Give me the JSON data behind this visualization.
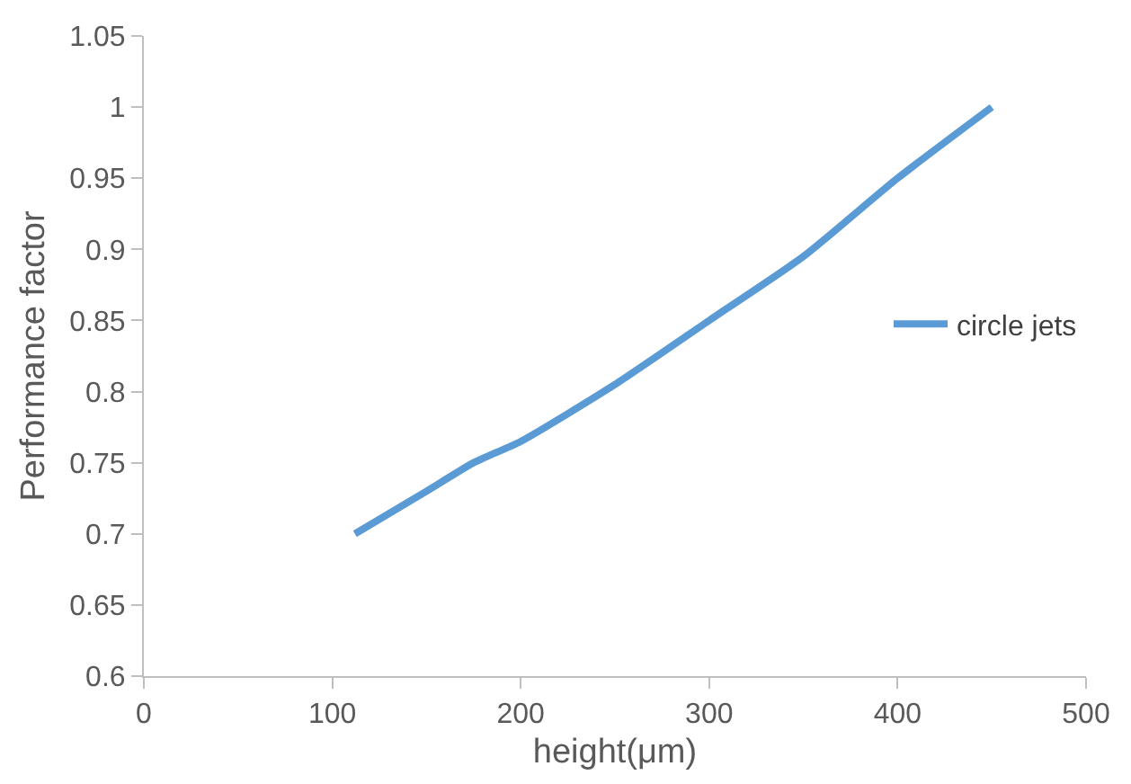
{
  "chart_data": {
    "type": "line",
    "xlabel": "height(μm)",
    "ylabel": "Performance factor",
    "x": [
      112,
      150,
      175,
      200,
      250,
      300,
      350,
      400,
      450
    ],
    "series": [
      {
        "name": "circle jets",
        "color": "#5b9bd5",
        "values": [
          0.7,
          0.73,
          0.75,
          0.765,
          0.805,
          0.85,
          0.895,
          0.95,
          1.0
        ]
      }
    ],
    "xlim": [
      0,
      500
    ],
    "xticks": [
      0,
      100,
      200,
      300,
      400,
      500
    ],
    "ylim": [
      0.6,
      1.05
    ],
    "yticks": [
      0.6,
      0.65,
      0.7,
      0.75,
      0.8,
      0.85,
      0.9,
      0.95,
      1,
      1.05
    ],
    "legend": "right",
    "marker": "none",
    "line_style": "solid"
  }
}
